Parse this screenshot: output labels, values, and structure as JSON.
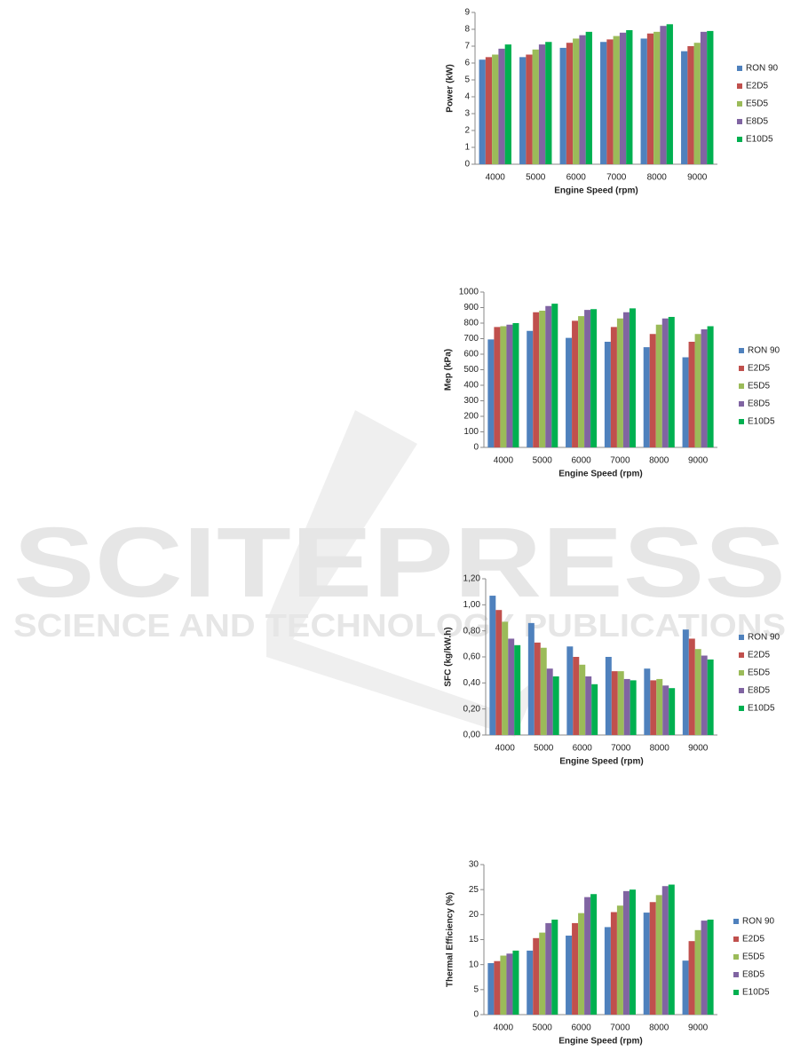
{
  "watermark": {
    "title": "SCITEPRESS",
    "subtitle": "SCIENCE AND TECHNOLOGY PUBLICATIONS"
  },
  "chart_data": [
    {
      "type": "bar",
      "x_label": "Engine Speed (rpm)",
      "y_label": "Power (kW)",
      "categories": [
        "4000",
        "5000",
        "6000",
        "7000",
        "8000",
        "9000"
      ],
      "series": [
        {
          "name": "RON 90",
          "color": "#4f81bd",
          "values": [
            6.2,
            6.35,
            6.9,
            7.25,
            7.45,
            6.7
          ]
        },
        {
          "name": "E2D5",
          "color": "#c0504d",
          "values": [
            6.35,
            6.5,
            7.2,
            7.4,
            7.75,
            7.0
          ]
        },
        {
          "name": "E5D5",
          "color": "#9bbb59",
          "values": [
            6.5,
            6.8,
            7.45,
            7.6,
            7.85,
            7.2
          ]
        },
        {
          "name": "E8D5",
          "color": "#8064a2",
          "values": [
            6.85,
            7.1,
            7.65,
            7.8,
            8.2,
            7.85
          ]
        },
        {
          "name": "E10D5",
          "color": "#00b050",
          "values": [
            7.1,
            7.25,
            7.85,
            7.95,
            8.3,
            7.9
          ]
        }
      ],
      "ylim": [
        0,
        9
      ],
      "yticks": [
        0,
        1,
        2,
        3,
        4,
        5,
        6,
        7,
        8,
        9
      ],
      "legend": "right"
    },
    {
      "type": "bar",
      "x_label": "Engine Speed (rpm)",
      "y_label": "Mep (kPa)",
      "categories": [
        "4000",
        "5000",
        "6000",
        "7000",
        "8000",
        "9000"
      ],
      "series": [
        {
          "name": "RON 90",
          "color": "#4f81bd",
          "values": [
            695,
            750,
            705,
            680,
            645,
            580
          ]
        },
        {
          "name": "E2D5",
          "color": "#c0504d",
          "values": [
            775,
            870,
            815,
            775,
            730,
            680
          ]
        },
        {
          "name": "E5D5",
          "color": "#9bbb59",
          "values": [
            780,
            880,
            845,
            830,
            790,
            730
          ]
        },
        {
          "name": "E8D5",
          "color": "#8064a2",
          "values": [
            790,
            910,
            885,
            870,
            830,
            760
          ]
        },
        {
          "name": "E10D5",
          "color": "#00b050",
          "values": [
            800,
            925,
            890,
            895,
            840,
            780
          ]
        }
      ],
      "ylim": [
        0,
        1000
      ],
      "yticks": [
        0,
        100,
        200,
        300,
        400,
        500,
        600,
        700,
        800,
        900,
        1000
      ],
      "legend": "right"
    },
    {
      "type": "bar",
      "x_label": "Engine Speed (rpm)",
      "y_label": "SFC (kg/kW.h)",
      "categories": [
        "4000",
        "5000",
        "6000",
        "7000",
        "8000",
        "9000"
      ],
      "series": [
        {
          "name": "RON 90",
          "color": "#4f81bd",
          "values": [
            1.07,
            0.86,
            0.68,
            0.6,
            0.51,
            0.81
          ]
        },
        {
          "name": "E2D5",
          "color": "#c0504d",
          "values": [
            0.96,
            0.71,
            0.6,
            0.49,
            0.42,
            0.74
          ]
        },
        {
          "name": "E5D5",
          "color": "#9bbb59",
          "values": [
            0.87,
            0.67,
            0.54,
            0.49,
            0.43,
            0.66
          ]
        },
        {
          "name": "E8D5",
          "color": "#8064a2",
          "values": [
            0.74,
            0.51,
            0.45,
            0.43,
            0.38,
            0.61
          ]
        },
        {
          "name": "E10D5",
          "color": "#00b050",
          "values": [
            0.69,
            0.45,
            0.39,
            0.42,
            0.36,
            0.58
          ]
        }
      ],
      "ylim": [
        0,
        1.2
      ],
      "yticks": [
        {
          "value": 0,
          "label": "0,00"
        },
        {
          "value": 0.2,
          "label": "0,20"
        },
        {
          "value": 0.4,
          "label": "0,40"
        },
        {
          "value": 0.6,
          "label": "0,60"
        },
        {
          "value": 0.8,
          "label": "0,80"
        },
        {
          "value": 1.0,
          "label": "1,00"
        },
        {
          "value": 1.2,
          "label": "1,20"
        }
      ],
      "legend": "right"
    },
    {
      "type": "bar",
      "x_label": "Engine Speed (rpm)",
      "y_label": "Thermal Efficiency (%)",
      "categories": [
        "4000",
        "5000",
        "6000",
        "7000",
        "8000",
        "9000"
      ],
      "series": [
        {
          "name": "RON 90",
          "color": "#4f81bd",
          "values": [
            10.3,
            12.8,
            15.8,
            17.5,
            20.4,
            10.8
          ]
        },
        {
          "name": "E2D5",
          "color": "#c0504d",
          "values": [
            10.7,
            15.3,
            18.3,
            20.5,
            22.5,
            14.7
          ]
        },
        {
          "name": "E5D5",
          "color": "#9bbb59",
          "values": [
            11.8,
            16.4,
            20.3,
            21.8,
            23.9,
            16.9
          ]
        },
        {
          "name": "E8D5",
          "color": "#8064a2",
          "values": [
            12.2,
            18.3,
            23.5,
            24.7,
            25.7,
            18.8
          ]
        },
        {
          "name": "E10D5",
          "color": "#00b050",
          "values": [
            12.8,
            19.0,
            24.1,
            25.0,
            26.0,
            19.0
          ]
        }
      ],
      "ylim": [
        0,
        30
      ],
      "yticks": [
        0,
        5,
        10,
        15,
        20,
        25,
        30
      ],
      "legend": "right"
    }
  ]
}
